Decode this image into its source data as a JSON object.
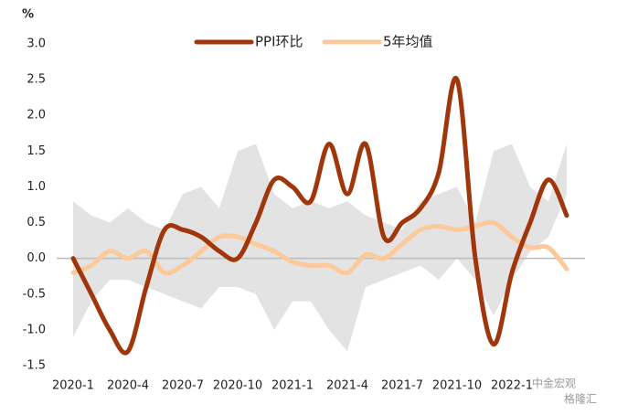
{
  "chart_data": {
    "type": "line",
    "unit": "%",
    "categories": [
      "2020-1",
      null,
      null,
      "2020-4",
      null,
      null,
      "2020-7",
      null,
      null,
      "2020-10",
      null,
      null,
      "2021-1",
      null,
      null,
      "2021-4",
      null,
      null,
      "2021-7",
      null,
      null,
      "2021-10",
      null,
      null,
      "2022-1",
      null,
      null,
      null
    ],
    "series": [
      {
        "name": "PPI环比",
        "color": "#a0360c",
        "values": [
          0.0,
          -0.5,
          -1.0,
          -1.3,
          -0.4,
          0.4,
          0.4,
          0.3,
          0.1,
          0.0,
          0.5,
          1.1,
          1.0,
          0.8,
          1.6,
          0.9,
          1.6,
          0.3,
          0.5,
          0.7,
          1.2,
          2.5,
          0.0,
          -1.2,
          -0.2,
          0.5,
          1.1,
          0.6
        ]
      },
      {
        "name": "5年均值",
        "color": "#fbc99a",
        "values": [
          -0.2,
          -0.1,
          0.1,
          0.0,
          0.1,
          -0.2,
          -0.1,
          0.1,
          0.3,
          0.3,
          0.2,
          0.1,
          -0.05,
          -0.1,
          -0.1,
          -0.2,
          0.05,
          0.0,
          0.2,
          0.4,
          0.45,
          0.4,
          0.45,
          0.5,
          0.3,
          0.15,
          0.15,
          -0.15
        ]
      }
    ],
    "band": {
      "color": "#e3e3e3",
      "upper": [
        0.8,
        0.6,
        0.5,
        0.7,
        0.5,
        0.4,
        0.9,
        1.0,
        0.7,
        1.5,
        1.6,
        0.9,
        0.7,
        0.8,
        0.7,
        0.8,
        0.6,
        0.5,
        0.4,
        0.8,
        0.9,
        1.0,
        0.5,
        1.5,
        1.6,
        1.0,
        0.8,
        1.6
      ],
      "lower": [
        -1.1,
        -0.6,
        -0.3,
        -0.3,
        -0.4,
        -0.5,
        -0.6,
        -0.7,
        -0.4,
        -0.4,
        -0.5,
        -1.0,
        -0.6,
        -0.6,
        -1.0,
        -1.3,
        -0.4,
        -0.3,
        -0.2,
        -0.1,
        -0.3,
        0.0,
        -0.3,
        -0.8,
        -0.3,
        0.1,
        0.3,
        0.9
      ]
    },
    "ylim": [
      -1.5,
      3.0
    ],
    "yticks": [
      {
        "value": 3.0,
        "label": "3.0"
      },
      2.5,
      {
        "value": 2.0,
        "label": "2.0"
      },
      1.5,
      {
        "value": 1.0,
        "label": "1.0"
      },
      0.5,
      {
        "value": 0.0,
        "label": "0.0"
      },
      -0.5,
      {
        "value": -1.0,
        "label": "-1.0"
      },
      -1.5
    ],
    "legend": "top",
    "watermark": [
      "中金宏观",
      "格隆汇"
    ]
  }
}
